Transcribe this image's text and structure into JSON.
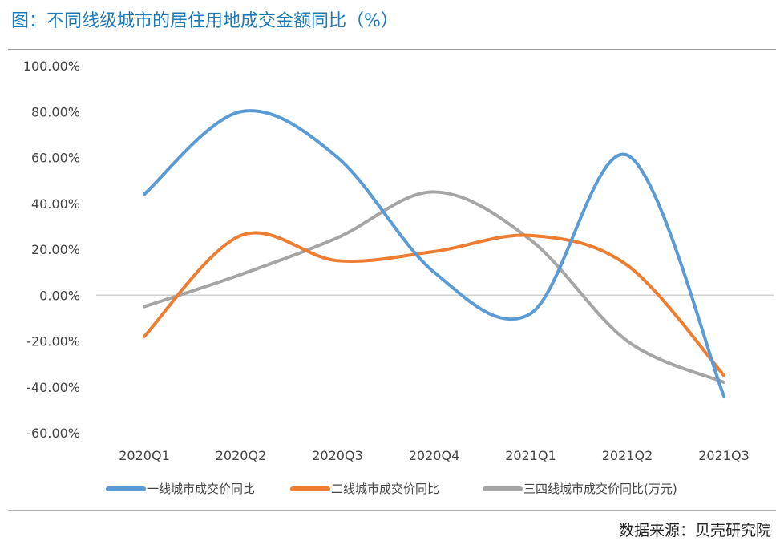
{
  "title": "图：不同线级城市的居住用地成交金额同比（%）",
  "source": "数据来源：贝壳研究院",
  "chart_data": {
    "type": "line",
    "smooth": true,
    "categories": [
      "2020Q1",
      "2020Q2",
      "2020Q3",
      "2020Q4",
      "2021Q1",
      "2021Q2",
      "2021Q3"
    ],
    "ylim": [
      -60,
      100
    ],
    "yticks": [
      100,
      80,
      60,
      40,
      20,
      0,
      -20,
      -40,
      -60
    ],
    "ytick_labels": [
      "100.00%",
      "80.00%",
      "60.00%",
      "40.00%",
      "20.00%",
      "0.00%",
      "-20.00%",
      "-40.00%",
      "-60.00%"
    ],
    "grid": "zero-line only",
    "legend_position": "bottom",
    "series": [
      {
        "name": "一线城市成交价同比",
        "color": "#5b9bd5",
        "values": [
          44,
          80,
          60,
          10,
          -8,
          61,
          -44
        ]
      },
      {
        "name": "二线城市成交价同比",
        "color": "#ed7d31",
        "values": [
          -18,
          26,
          15,
          19,
          26,
          13,
          -35
        ]
      },
      {
        "name": "三四线城市成交价同比(万元)",
        "color": "#a5a5a5",
        "values": [
          -5,
          9,
          25,
          45,
          24,
          -20,
          -38
        ]
      }
    ]
  }
}
